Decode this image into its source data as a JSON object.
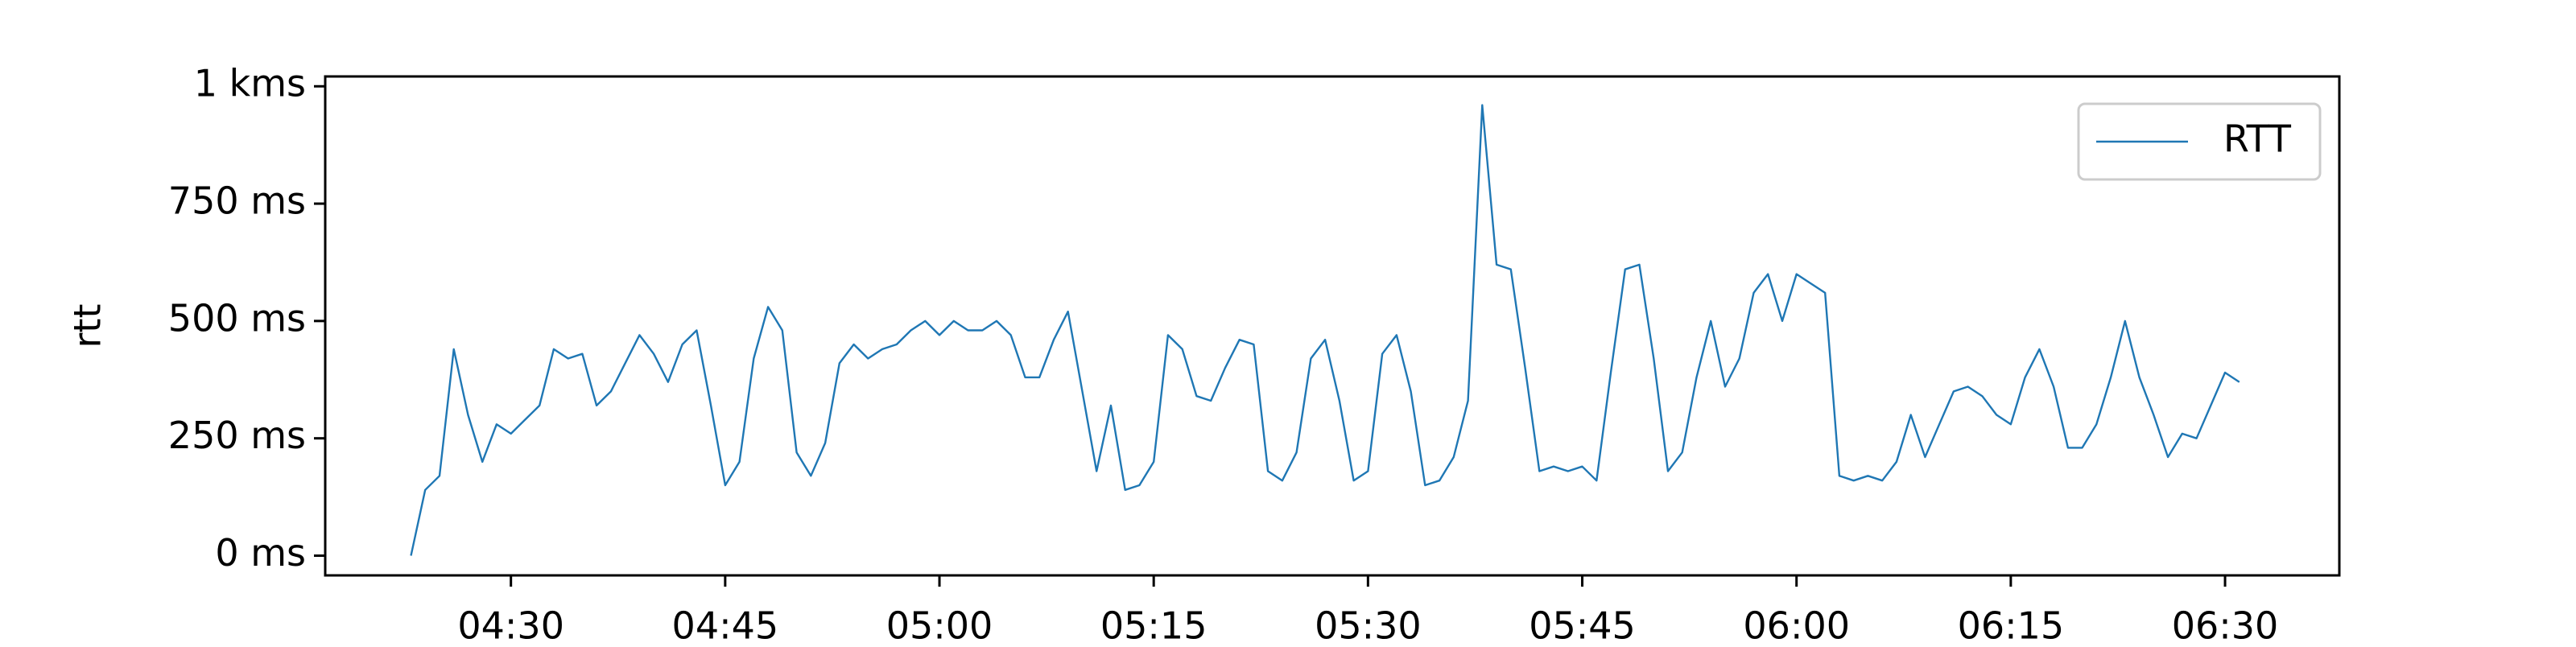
{
  "chart_data": {
    "type": "line",
    "y_label": "rtt",
    "x": [
      "04:23",
      "04:24",
      "04:25",
      "04:26",
      "04:27",
      "04:28",
      "04:29",
      "04:30",
      "04:31",
      "04:32",
      "04:33",
      "04:34",
      "04:35",
      "04:36",
      "04:37",
      "04:38",
      "04:39",
      "04:40",
      "04:41",
      "04:42",
      "04:43",
      "04:44",
      "04:45",
      "04:46",
      "04:47",
      "04:48",
      "04:49",
      "04:50",
      "04:51",
      "04:52",
      "04:53",
      "04:54",
      "04:55",
      "04:56",
      "04:57",
      "04:58",
      "04:59",
      "05:00",
      "05:01",
      "05:02",
      "05:03",
      "05:04",
      "05:05",
      "05:06",
      "05:07",
      "05:08",
      "05:09",
      "05:10",
      "05:11",
      "05:12",
      "05:13",
      "05:14",
      "05:15",
      "05:16",
      "05:17",
      "05:18",
      "05:19",
      "05:20",
      "05:21",
      "05:22",
      "05:23",
      "05:24",
      "05:25",
      "05:26",
      "05:27",
      "05:28",
      "05:29",
      "05:30",
      "05:31",
      "05:32",
      "05:33",
      "05:34",
      "05:35",
      "05:36",
      "05:37",
      "05:38",
      "05:39",
      "05:40",
      "05:41",
      "05:42",
      "05:43",
      "05:44",
      "05:45",
      "05:46",
      "05:47",
      "05:48",
      "05:49",
      "05:50",
      "05:51",
      "05:52",
      "05:53",
      "05:54",
      "05:55",
      "05:56",
      "05:57",
      "05:58",
      "05:59",
      "06:00",
      "06:01",
      "06:02",
      "06:03",
      "06:04",
      "06:05",
      "06:06",
      "06:07",
      "06:08",
      "06:09",
      "06:10",
      "06:11",
      "06:12",
      "06:13",
      "06:14",
      "06:15",
      "06:16",
      "06:17",
      "06:18",
      "06:19",
      "06:20",
      "06:21",
      "06:22",
      "06:23",
      "06:24",
      "06:25",
      "06:26",
      "06:27",
      "06:28",
      "06:29",
      "06:30",
      "06:31"
    ],
    "series": [
      {
        "name": "RTT",
        "color": "#1f77b4",
        "values": [
          0,
          140,
          170,
          440,
          300,
          200,
          280,
          260,
          290,
          320,
          440,
          420,
          430,
          320,
          350,
          410,
          470,
          430,
          370,
          450,
          480,
          320,
          150,
          200,
          420,
          530,
          480,
          220,
          170,
          240,
          410,
          450,
          420,
          440,
          450,
          480,
          500,
          470,
          500,
          480,
          480,
          500,
          470,
          380,
          380,
          460,
          520,
          350,
          180,
          320,
          140,
          150,
          200,
          470,
          440,
          340,
          330,
          400,
          460,
          450,
          180,
          160,
          220,
          420,
          460,
          330,
          160,
          180,
          430,
          470,
          350,
          150,
          160,
          210,
          330,
          960,
          620,
          610,
          400,
          180,
          190,
          180,
          190,
          160,
          390,
          610,
          620,
          420,
          180,
          220,
          380,
          500,
          360,
          420,
          560,
          600,
          500,
          600,
          580,
          560,
          170,
          160,
          170,
          160,
          200,
          300,
          210,
          280,
          350,
          360,
          340,
          300,
          280,
          380,
          440,
          360,
          230,
          230,
          280,
          380,
          500,
          380,
          300,
          210,
          260,
          250,
          320,
          390,
          370
        ]
      }
    ],
    "xlim": [
      "04:17",
      "06:38"
    ],
    "xticks": [
      "04:30",
      "04:45",
      "05:00",
      "05:15",
      "05:30",
      "05:45",
      "06:00",
      "06:15",
      "06:30"
    ],
    "ylim": [
      -42,
      1021
    ],
    "yticks": [
      {
        "value": 0,
        "label": "0 ms"
      },
      {
        "value": 250,
        "label": "250 ms"
      },
      {
        "value": 500,
        "label": "500 ms"
      },
      {
        "value": 750,
        "label": "750 ms"
      },
      {
        "value": 1000,
        "label": "1 kms"
      }
    ],
    "legend": "upper right",
    "grid": false
  }
}
